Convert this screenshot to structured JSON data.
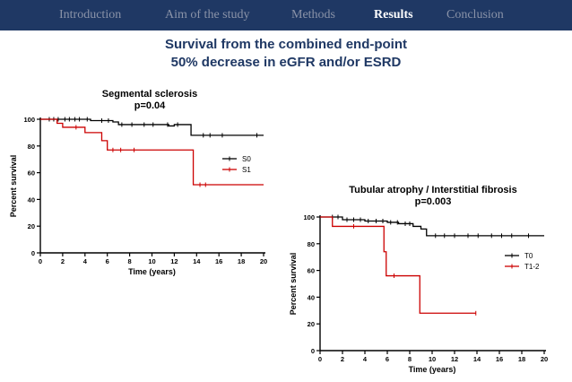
{
  "nav": {
    "items": [
      {
        "label": "Introduction",
        "active": false
      },
      {
        "label": "Aim of the study",
        "active": false
      },
      {
        "label": "Methods",
        "active": false
      },
      {
        "label": "Results",
        "active": true
      },
      {
        "label": "Conclusion",
        "active": false
      }
    ]
  },
  "slide": {
    "title_line1": "Survival from the combined end-point",
    "title_line2": "50% decrease in eGFR  and/or ESRD"
  },
  "colors": {
    "nav_bg": "#1f3864",
    "title": "#1f3864",
    "black_series": "#000000",
    "red_series": "#cc0000"
  },
  "chart_data": [
    {
      "type": "line",
      "title": "Segmental sclerosis",
      "subtitle": "p=0.04",
      "xlabel": "Time (years)",
      "ylabel": "Percent survival",
      "xlim": [
        0,
        20
      ],
      "ylim": [
        0,
        100
      ],
      "x_ticks": [
        0,
        2,
        4,
        6,
        8,
        10,
        12,
        14,
        16,
        18,
        20
      ],
      "y_ticks": [
        0,
        20,
        40,
        60,
        80,
        100
      ],
      "legend_position": "right-middle",
      "series": [
        {
          "name": "S0",
          "color": "#000000",
          "steps": [
            [
              0,
              100
            ],
            [
              4.5,
              99
            ],
            [
              6.5,
              98
            ],
            [
              7,
              96
            ],
            [
              11.5,
              95
            ],
            [
              12,
              96
            ],
            [
              13.5,
              88
            ],
            [
              20,
              88
            ]
          ],
          "censor": [
            0.8,
            1.2,
            1.6,
            2.2,
            2.6,
            3.1,
            3.5,
            4.2,
            5.5,
            6.1,
            7.3,
            8.2,
            9.3,
            10.1,
            11.4,
            12.3,
            14.6,
            15.2,
            16.3,
            19.4
          ]
        },
        {
          "name": "S1",
          "color": "#cc0000",
          "steps": [
            [
              0,
              100
            ],
            [
              1.5,
              97
            ],
            [
              2,
              94
            ],
            [
              4,
              90
            ],
            [
              5.5,
              84
            ],
            [
              6,
              77
            ],
            [
              13.7,
              51
            ],
            [
              20,
              51
            ]
          ],
          "censor": [
            3.2,
            6.5,
            7.2,
            8.4,
            14.3,
            14.8
          ]
        }
      ]
    },
    {
      "type": "line",
      "title": "Tubular atrophy / Interstitial fibrosis",
      "subtitle": "p=0.003",
      "xlabel": "Time (years)",
      "ylabel": "Percent survival",
      "xlim": [
        0,
        20
      ],
      "ylim": [
        0,
        100
      ],
      "x_ticks": [
        0,
        2,
        4,
        6,
        8,
        10,
        12,
        14,
        16,
        18,
        20
      ],
      "y_ticks": [
        0,
        20,
        40,
        60,
        80,
        100
      ],
      "legend_position": "right-middle",
      "series": [
        {
          "name": "T0",
          "color": "#000000",
          "steps": [
            [
              0,
              100
            ],
            [
              2,
              98
            ],
            [
              4,
              97
            ],
            [
              6,
              96
            ],
            [
              7,
              95
            ],
            [
              8.3,
              93
            ],
            [
              9,
              91
            ],
            [
              9.5,
              86
            ],
            [
              20,
              86
            ]
          ],
          "censor": [
            1.1,
            1.6,
            2.4,
            3.0,
            3.6,
            4.3,
            5.0,
            5.6,
            6.3,
            6.9,
            7.6,
            8.0,
            10.3,
            11.1,
            12.0,
            13.2,
            14.1,
            15.3,
            16.2,
            17.1,
            18.6
          ]
        },
        {
          "name": "T1-2",
          "color": "#cc0000",
          "steps": [
            [
              0,
              100
            ],
            [
              1.1,
              93
            ],
            [
              5.7,
              74
            ],
            [
              5.9,
              56
            ],
            [
              8.9,
              28
            ],
            [
              13.9,
              28
            ]
          ],
          "censor": [
            3.0,
            6.6,
            13.9
          ]
        }
      ]
    }
  ]
}
